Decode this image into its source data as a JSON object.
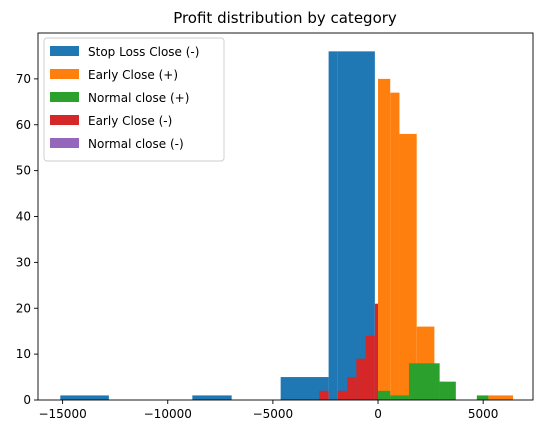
{
  "chart_data": {
    "type": "bar",
    "title": "Profit distribution by category",
    "xlabel": "",
    "ylabel": "",
    "xlim": [
      -16170,
      7370
    ],
    "ylim": [
      0,
      80
    ],
    "xticks": [
      -15000,
      -10000,
      -5000,
      0,
      5000
    ],
    "xtick_labels": [
      "−15000",
      "−10000",
      "−5000",
      "0",
      "5000"
    ],
    "yticks": [
      0,
      10,
      20,
      30,
      40,
      50,
      60,
      70
    ],
    "ytick_labels": [
      "0",
      "10",
      "20",
      "30",
      "40",
      "50",
      "60",
      "70"
    ],
    "grid": false,
    "legend_position": "top-left",
    "series": [
      {
        "name": "Stop Loss Close (-)",
        "color": "#1f77b4",
        "bins": [
          {
            "x0": -15110,
            "x1": -12800,
            "count": 1
          },
          {
            "x0": -8830,
            "x1": -6960,
            "count": 1
          },
          {
            "x0": -4630,
            "x1": -2350,
            "count": 5
          },
          {
            "x0": -2350,
            "x1": -1910,
            "count": 76
          },
          {
            "x0": -1910,
            "x1": -150,
            "count": 76
          }
        ]
      },
      {
        "name": "Early Close (+)",
        "color": "#ff7f0e",
        "bins": [
          {
            "x0": 0,
            "x1": 580,
            "count": 70
          },
          {
            "x0": 580,
            "x1": 1020,
            "count": 67
          },
          {
            "x0": 1020,
            "x1": 1840,
            "count": 58
          },
          {
            "x0": 1840,
            "x1": 2680,
            "count": 16
          },
          {
            "x0": 2680,
            "x1": 3100,
            "count": 4
          },
          {
            "x0": 5250,
            "x1": 6420,
            "count": 1
          }
        ]
      },
      {
        "name": "Normal close (+)",
        "color": "#2ca02c",
        "bins": [
          {
            "x0": 0,
            "x1": 580,
            "count": 2
          },
          {
            "x0": 580,
            "x1": 1470,
            "count": 1
          },
          {
            "x0": 1470,
            "x1": 2930,
            "count": 8
          },
          {
            "x0": 2930,
            "x1": 3700,
            "count": 4
          },
          {
            "x0": 4700,
            "x1": 5250,
            "count": 1
          }
        ]
      },
      {
        "name": "Early Close (-)",
        "color": "#d62728",
        "bins": [
          {
            "x0": -2800,
            "x1": -2350,
            "count": 2
          },
          {
            "x0": -1910,
            "x1": -1470,
            "count": 2
          },
          {
            "x0": -1470,
            "x1": -1030,
            "count": 5
          },
          {
            "x0": -1030,
            "x1": -590,
            "count": 9
          },
          {
            "x0": -590,
            "x1": -150,
            "count": 14
          },
          {
            "x0": -150,
            "x1": 0,
            "count": 21
          }
        ]
      },
      {
        "name": "Normal close (-)",
        "color": "#9467bd",
        "bins": []
      }
    ]
  }
}
